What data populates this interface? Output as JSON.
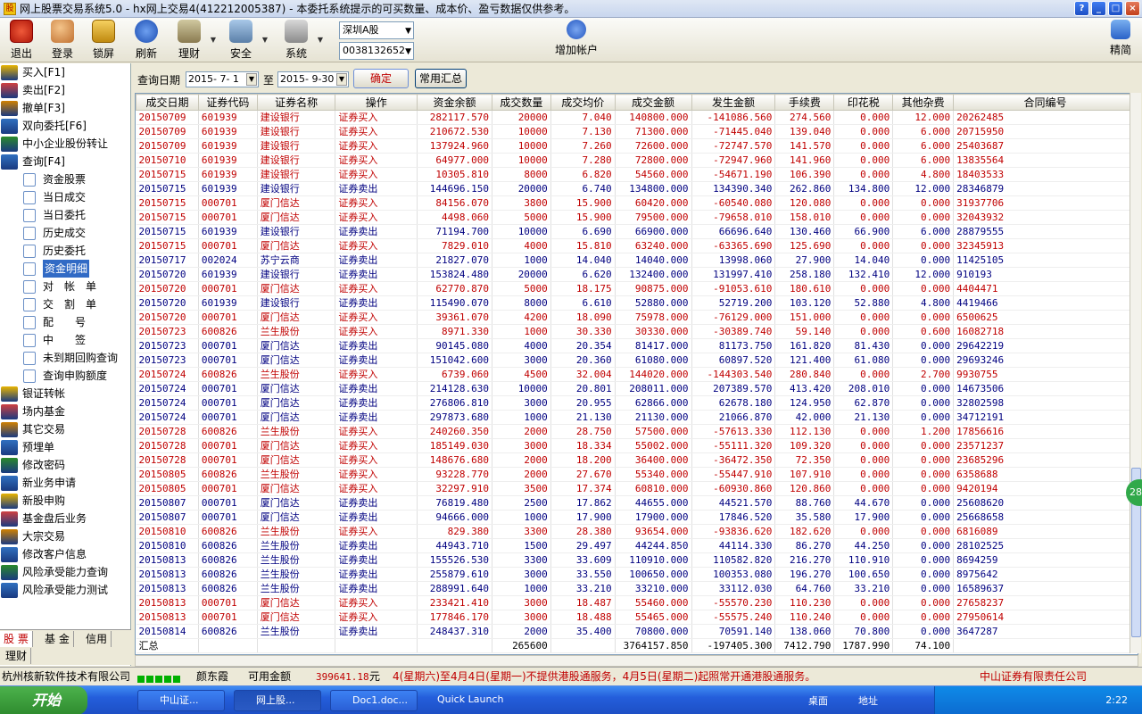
{
  "window": {
    "title": "网上股票交易系统5.0 - hx网上交易4(412212005387) - 本委托系统提示的可买数量、成本价、盈亏数据仅供参考。",
    "icon_name": "app-icon",
    "buttons": [
      "?",
      "_",
      "□",
      "×"
    ]
  },
  "toolbar": {
    "items": [
      {
        "label": "退出",
        "icon": "exit-icon"
      },
      {
        "label": "登录",
        "icon": "login-users-icon"
      },
      {
        "label": "锁屏",
        "icon": "lock-screen-icon"
      },
      {
        "label": "刷新",
        "icon": "refresh-icon"
      },
      {
        "label": "理财",
        "icon": "finance-icon"
      },
      {
        "label": "安全",
        "icon": "security-icon"
      },
      {
        "label": "系统",
        "icon": "system-tools-icon"
      }
    ],
    "market_select": "深圳A股",
    "account_select": "0038132652",
    "add_account": "增加帐户",
    "simplified": "精简"
  },
  "sidebar": {
    "items": [
      {
        "label": "买入[F1]",
        "icon": "buy-icon"
      },
      {
        "label": "卖出[F2]",
        "icon": "sell-icon"
      },
      {
        "label": "撤单[F3]",
        "icon": "cancel-order-icon"
      },
      {
        "label": "双向委托[F6]",
        "icon": "two-way-order-icon"
      },
      {
        "label": "中小企业股份转让",
        "icon": "share-transfer-icon"
      },
      {
        "label": "查询[F4]",
        "icon": "query-icon"
      },
      {
        "label": "资金股票",
        "icon": "doc-icon",
        "sub": true
      },
      {
        "label": "当日成交",
        "icon": "doc-icon",
        "sub": true
      },
      {
        "label": "当日委托",
        "icon": "doc-icon",
        "sub": true
      },
      {
        "label": "历史成交",
        "icon": "doc-icon",
        "sub": true
      },
      {
        "label": "历史委托",
        "icon": "doc-icon",
        "sub": true
      },
      {
        "label": "资金明细",
        "icon": "doc-icon",
        "sub": true,
        "active": true
      },
      {
        "label": "对　帐　单",
        "icon": "doc-icon",
        "sub": true
      },
      {
        "label": "交　割　单",
        "icon": "doc-icon",
        "sub": true
      },
      {
        "label": "配　　号",
        "icon": "doc-icon",
        "sub": true
      },
      {
        "label": "中　　签",
        "icon": "doc-icon",
        "sub": true
      },
      {
        "label": "未到期回购查询",
        "icon": "doc-icon",
        "sub": true
      },
      {
        "label": "查询申购额度",
        "icon": "doc-icon",
        "sub": true
      },
      {
        "label": "银证转帐",
        "icon": "bank-transfer-icon"
      },
      {
        "label": "场内基金",
        "icon": "fund-icon"
      },
      {
        "label": "其它交易",
        "icon": "other-trade-icon"
      },
      {
        "label": "预埋单",
        "icon": "pre-order-icon"
      },
      {
        "label": "修改密码",
        "icon": "key-icon"
      },
      {
        "label": "新业务申请",
        "icon": "new-business-icon"
      },
      {
        "label": "新股申购",
        "icon": "ipo-icon"
      },
      {
        "label": "基金盘后业务",
        "icon": "fund-after-hours-icon"
      },
      {
        "label": "大宗交易",
        "icon": "block-trade-icon"
      },
      {
        "label": "修改客户信息",
        "icon": "edit-info-icon"
      },
      {
        "label": "风险承受能力查询",
        "icon": "star-icon"
      },
      {
        "label": "风险承受能力测试",
        "icon": "star-icon"
      }
    ],
    "tabs": [
      "股 票",
      "基 金",
      "信用",
      "理财"
    ]
  },
  "query": {
    "label": "查询日期",
    "from": "2015- 7- 1",
    "to_label": "至",
    "to": "2015- 9-30",
    "confirm": "确定",
    "summary": "常用汇总"
  },
  "table": {
    "columns": [
      "成交日期",
      "证券代码",
      "证券名称",
      "操作",
      "资金余额",
      "成交数量",
      "成交均价",
      "成交金额",
      "发生金额",
      "手续费",
      "印花税",
      "其他杂费",
      "合同编号"
    ],
    "rows": [
      [
        "20150709",
        "601939",
        "建设银行",
        "证券买入",
        "282117.570",
        "20000",
        "7.040",
        "140800.000",
        "-141086.560",
        "274.560",
        "0.000",
        "12.000",
        "20262485"
      ],
      [
        "20150709",
        "601939",
        "建设银行",
        "证券买入",
        "210672.530",
        "10000",
        "7.130",
        "71300.000",
        "-71445.040",
        "139.040",
        "0.000",
        "6.000",
        "20715950"
      ],
      [
        "20150709",
        "601939",
        "建设银行",
        "证券买入",
        "137924.960",
        "10000",
        "7.260",
        "72600.000",
        "-72747.570",
        "141.570",
        "0.000",
        "6.000",
        "25403687"
      ],
      [
        "20150710",
        "601939",
        "建设银行",
        "证券买入",
        "64977.000",
        "10000",
        "7.280",
        "72800.000",
        "-72947.960",
        "141.960",
        "0.000",
        "6.000",
        "13835564"
      ],
      [
        "20150715",
        "601939",
        "建设银行",
        "证券买入",
        "10305.810",
        "8000",
        "6.820",
        "54560.000",
        "-54671.190",
        "106.390",
        "0.000",
        "4.800",
        "18403533"
      ],
      [
        "20150715",
        "601939",
        "建设银行",
        "证券卖出",
        "144696.150",
        "20000",
        "6.740",
        "134800.000",
        "134390.340",
        "262.860",
        "134.800",
        "12.000",
        "28346879"
      ],
      [
        "20150715",
        "000701",
        "厦门信达",
        "证券买入",
        "84156.070",
        "3800",
        "15.900",
        "60420.000",
        "-60540.080",
        "120.080",
        "0.000",
        "0.000",
        "31937706"
      ],
      [
        "20150715",
        "000701",
        "厦门信达",
        "证券买入",
        "4498.060",
        "5000",
        "15.900",
        "79500.000",
        "-79658.010",
        "158.010",
        "0.000",
        "0.000",
        "32043932"
      ],
      [
        "20150715",
        "601939",
        "建设银行",
        "证券卖出",
        "71194.700",
        "10000",
        "6.690",
        "66900.000",
        "66696.640",
        "130.460",
        "66.900",
        "6.000",
        "28879555"
      ],
      [
        "20150715",
        "000701",
        "厦门信达",
        "证券买入",
        "7829.010",
        "4000",
        "15.810",
        "63240.000",
        "-63365.690",
        "125.690",
        "0.000",
        "0.000",
        "32345913"
      ],
      [
        "20150717",
        "002024",
        "苏宁云商",
        "证券卖出",
        "21827.070",
        "1000",
        "14.040",
        "14040.000",
        "13998.060",
        "27.900",
        "14.040",
        "0.000",
        "11425105"
      ],
      [
        "20150720",
        "601939",
        "建设银行",
        "证券卖出",
        "153824.480",
        "20000",
        "6.620",
        "132400.000",
        "131997.410",
        "258.180",
        "132.410",
        "12.000",
        "910193"
      ],
      [
        "20150720",
        "000701",
        "厦门信达",
        "证券买入",
        "62770.870",
        "5000",
        "18.175",
        "90875.000",
        "-91053.610",
        "180.610",
        "0.000",
        "0.000",
        "4404471"
      ],
      [
        "20150720",
        "601939",
        "建设银行",
        "证券卖出",
        "115490.070",
        "8000",
        "6.610",
        "52880.000",
        "52719.200",
        "103.120",
        "52.880",
        "4.800",
        "4419466"
      ],
      [
        "20150720",
        "000701",
        "厦门信达",
        "证券买入",
        "39361.070",
        "4200",
        "18.090",
        "75978.000",
        "-76129.000",
        "151.000",
        "0.000",
        "0.000",
        "6500625"
      ],
      [
        "20150723",
        "600826",
        "兰生股份",
        "证券买入",
        "8971.330",
        "1000",
        "30.330",
        "30330.000",
        "-30389.740",
        "59.140",
        "0.000",
        "0.600",
        "16082718"
      ],
      [
        "20150723",
        "000701",
        "厦门信达",
        "证券卖出",
        "90145.080",
        "4000",
        "20.354",
        "81417.000",
        "81173.750",
        "161.820",
        "81.430",
        "0.000",
        "29642219"
      ],
      [
        "20150723",
        "000701",
        "厦门信达",
        "证券卖出",
        "151042.600",
        "3000",
        "20.360",
        "61080.000",
        "60897.520",
        "121.400",
        "61.080",
        "0.000",
        "29693246"
      ],
      [
        "20150724",
        "600826",
        "兰生股份",
        "证券买入",
        "6739.060",
        "4500",
        "32.004",
        "144020.000",
        "-144303.540",
        "280.840",
        "0.000",
        "2.700",
        "9930755"
      ],
      [
        "20150724",
        "000701",
        "厦门信达",
        "证券卖出",
        "214128.630",
        "10000",
        "20.801",
        "208011.000",
        "207389.570",
        "413.420",
        "208.010",
        "0.000",
        "14673506"
      ],
      [
        "20150724",
        "000701",
        "厦门信达",
        "证券卖出",
        "276806.810",
        "3000",
        "20.955",
        "62866.000",
        "62678.180",
        "124.950",
        "62.870",
        "0.000",
        "32802598"
      ],
      [
        "20150724",
        "000701",
        "厦门信达",
        "证券卖出",
        "297873.680",
        "1000",
        "21.130",
        "21130.000",
        "21066.870",
        "42.000",
        "21.130",
        "0.000",
        "34712191"
      ],
      [
        "20150728",
        "600826",
        "兰生股份",
        "证券买入",
        "240260.350",
        "2000",
        "28.750",
        "57500.000",
        "-57613.330",
        "112.130",
        "0.000",
        "1.200",
        "17856616"
      ],
      [
        "20150728",
        "000701",
        "厦门信达",
        "证券买入",
        "185149.030",
        "3000",
        "18.334",
        "55002.000",
        "-55111.320",
        "109.320",
        "0.000",
        "0.000",
        "23571237"
      ],
      [
        "20150728",
        "000701",
        "厦门信达",
        "证券买入",
        "148676.680",
        "2000",
        "18.200",
        "36400.000",
        "-36472.350",
        "72.350",
        "0.000",
        "0.000",
        "23685296"
      ],
      [
        "20150805",
        "600826",
        "兰生股份",
        "证券买入",
        "93228.770",
        "2000",
        "27.670",
        "55340.000",
        "-55447.910",
        "107.910",
        "0.000",
        "0.000",
        "6358688"
      ],
      [
        "20150805",
        "000701",
        "厦门信达",
        "证券买入",
        "32297.910",
        "3500",
        "17.374",
        "60810.000",
        "-60930.860",
        "120.860",
        "0.000",
        "0.000",
        "9420194"
      ],
      [
        "20150807",
        "000701",
        "厦门信达",
        "证券卖出",
        "76819.480",
        "2500",
        "17.862",
        "44655.000",
        "44521.570",
        "88.760",
        "44.670",
        "0.000",
        "25608620"
      ],
      [
        "20150807",
        "000701",
        "厦门信达",
        "证券卖出",
        "94666.000",
        "1000",
        "17.900",
        "17900.000",
        "17846.520",
        "35.580",
        "17.900",
        "0.000",
        "25668658"
      ],
      [
        "20150810",
        "600826",
        "兰生股份",
        "证券买入",
        "829.380",
        "3300",
        "28.380",
        "93654.000",
        "-93836.620",
        "182.620",
        "0.000",
        "0.000",
        "6816089"
      ],
      [
        "20150810",
        "600826",
        "兰生股份",
        "证券卖出",
        "44943.710",
        "1500",
        "29.497",
        "44244.850",
        "44114.330",
        "86.270",
        "44.250",
        "0.000",
        "28102525"
      ],
      [
        "20150813",
        "600826",
        "兰生股份",
        "证券卖出",
        "155526.530",
        "3300",
        "33.609",
        "110910.000",
        "110582.820",
        "216.270",
        "110.910",
        "0.000",
        "8694259"
      ],
      [
        "20150813",
        "600826",
        "兰生股份",
        "证券卖出",
        "255879.610",
        "3000",
        "33.550",
        "100650.000",
        "100353.080",
        "196.270",
        "100.650",
        "0.000",
        "8975642"
      ],
      [
        "20150813",
        "600826",
        "兰生股份",
        "证券卖出",
        "288991.640",
        "1000",
        "33.210",
        "33210.000",
        "33112.030",
        "64.760",
        "33.210",
        "0.000",
        "16589637"
      ],
      [
        "20150813",
        "000701",
        "厦门信达",
        "证券买入",
        "233421.410",
        "3000",
        "18.487",
        "55460.000",
        "-55570.230",
        "110.230",
        "0.000",
        "0.000",
        "27658237"
      ],
      [
        "20150813",
        "000701",
        "厦门信达",
        "证券买入",
        "177846.170",
        "3000",
        "18.488",
        "55465.000",
        "-55575.240",
        "110.240",
        "0.000",
        "0.000",
        "27950614"
      ],
      [
        "20150814",
        "600826",
        "兰生股份",
        "证券卖出",
        "248437.310",
        "2000",
        "35.400",
        "70800.000",
        "70591.140",
        "138.060",
        "70.800",
        "0.000",
        "3647287"
      ]
    ],
    "summary_row": [
      "汇总",
      "",
      "",
      "",
      "",
      "265600",
      "",
      "3764157.850",
      "-197405.300",
      "7412.790",
      "1787.990",
      "74.100",
      ""
    ]
  },
  "statusbar": {
    "company": "杭州核新软件技术有限公司",
    "user": "颜东霞",
    "funds_label": "可用金额",
    "funds_value": "399641.18",
    "currency": "元",
    "ticker": "4(星期六)至4月4日(星期一)不提供港股通服务，4月5日(星期二)起照常开通港股通服务。",
    "broker": "中山证券有限责任公司"
  },
  "taskbar": {
    "start": "开始",
    "tasks": [
      "中山证...",
      "网上股...",
      "Doc1.doc..."
    ],
    "quick_launch": "Quick Launch",
    "desktop": "桌面",
    "address": "地址",
    "clock": "2:22"
  },
  "bubble": "28",
  "colors": {
    "buy": "#c00000",
    "sell": "#000080",
    "selected": "#316ac5"
  }
}
